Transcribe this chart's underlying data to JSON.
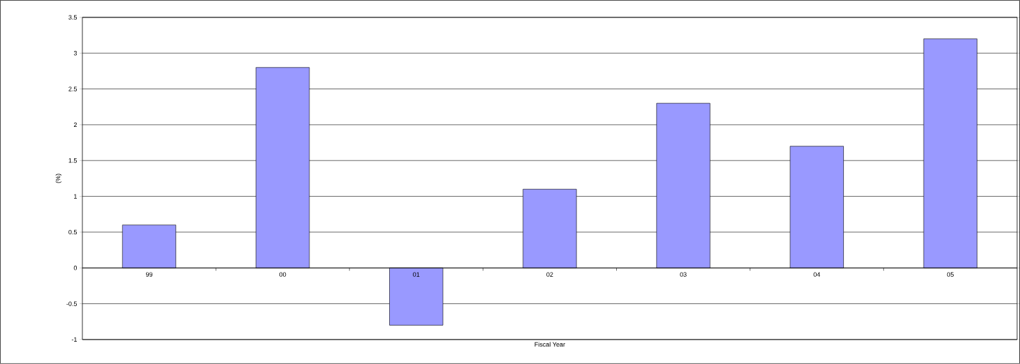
{
  "chart_data": {
    "type": "bar",
    "xlabel": "Fiscal Year",
    "ylabel": "(%)",
    "categories": [
      "99",
      "00",
      "01",
      "02",
      "03",
      "04",
      "05"
    ],
    "values": [
      0.6,
      2.8,
      -0.8,
      1.1,
      2.3,
      1.7,
      3.2
    ],
    "color": "#9999ff",
    "ylim": [
      -1,
      3.5
    ],
    "yticks": [
      -1,
      -0.5,
      0,
      0.5,
      1,
      1.5,
      2,
      2.5,
      3,
      3.5
    ],
    "grid": "y"
  }
}
